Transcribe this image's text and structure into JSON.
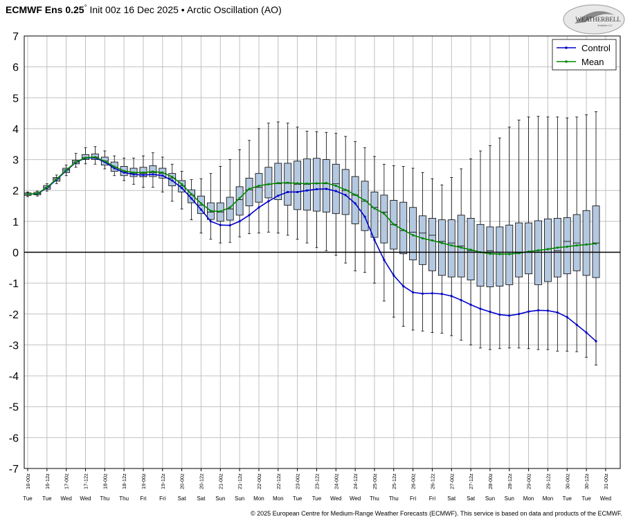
{
  "header": {
    "model": "ECMWF Ens 0.25",
    "degree": "°",
    "init": "Init 00z 16 Dec 2025",
    "separator": "•",
    "index_name": "Arctic Oscillation (AO)"
  },
  "logo": {
    "text": "WEATHERBELL",
    "sub": "Analytics LLC"
  },
  "footer": {
    "copyright": "© 2025 European Centre for Medium-Range Weather Forecasts (ECMWF). This service is based on data and products of the ECMWF."
  },
  "colors": {
    "control": "#0000cc",
    "mean": "#008800",
    "box_fill": "#b4c8e0",
    "grid": "#c0c0c0",
    "zero_line": "#000000"
  },
  "chart_data": {
    "type": "box_and_line",
    "title": "Arctic Oscillation (AO)",
    "ylim": [
      -7,
      7
    ],
    "yticks": [
      7,
      6,
      5,
      4,
      3,
      2,
      1,
      0,
      -1,
      -2,
      -3,
      -4,
      -5,
      -6,
      -7
    ],
    "grid": true,
    "legend_position": "top-right",
    "legend": [
      "Control",
      "Mean"
    ],
    "x_dates": [
      "16-00z",
      "16-12z",
      "17-00z",
      "17-12z",
      "18-00z",
      "18-12z",
      "19-00z",
      "19-12z",
      "20-00z",
      "20-12z",
      "21-00z",
      "21-12z",
      "22-00z",
      "22-12z",
      "23-00z",
      "23-12z",
      "24-00z",
      "24-12z",
      "25-00z",
      "25-12z",
      "26-00z",
      "26-12z",
      "27-00z",
      "27-12z",
      "28-00z",
      "28-12z",
      "29-00z",
      "29-12z",
      "30-00z",
      "30-12z",
      "31-00z"
    ],
    "x_days": [
      "Tue",
      "Tue",
      "Wed",
      "Wed",
      "Thu",
      "Thu",
      "Fri",
      "Fri",
      "Sat",
      "Sat",
      "Sun",
      "Sun",
      "Mon",
      "Mon",
      "Tue",
      "Tue",
      "Wed",
      "Wed",
      "Thu",
      "Thu",
      "Fri",
      "Fri",
      "Sat",
      "Sat",
      "Sun",
      "Sun",
      "Mon",
      "Mon",
      "Tue",
      "Tue",
      "Wed"
    ],
    "steps_per_label": 2,
    "series": [
      {
        "name": "Control",
        "values": [
          1.88,
          1.89,
          2.08,
          2.35,
          2.64,
          2.91,
          3.05,
          3.06,
          2.92,
          2.72,
          2.58,
          2.52,
          2.5,
          2.52,
          2.48,
          2.32,
          2.08,
          1.74,
          1.38,
          1.0,
          0.88,
          0.87,
          1.0,
          1.2,
          1.45,
          1.65,
          1.83,
          1.95,
          1.95,
          2.0,
          2.04,
          2.05,
          1.98,
          1.85,
          1.58,
          1.15,
          0.4,
          -0.25,
          -0.75,
          -1.1,
          -1.3,
          -1.34,
          -1.33,
          -1.35,
          -1.42,
          -1.55,
          -1.7,
          -1.83,
          -1.93,
          -2.02,
          -2.05,
          -2.0,
          -1.92,
          -1.88,
          -1.89,
          -1.95,
          -2.1,
          -2.35,
          -2.6,
          -2.88
        ]
      },
      {
        "name": "Mean",
        "values": [
          1.88,
          1.9,
          2.1,
          2.37,
          2.66,
          2.92,
          3.06,
          3.08,
          2.95,
          2.77,
          2.63,
          2.58,
          2.58,
          2.61,
          2.58,
          2.44,
          2.2,
          1.88,
          1.58,
          1.34,
          1.32,
          1.45,
          1.75,
          2.05,
          2.15,
          2.2,
          2.24,
          2.25,
          2.23,
          2.22,
          2.23,
          2.24,
          2.15,
          2.02,
          1.86,
          1.68,
          1.42,
          1.25,
          0.9,
          0.72,
          0.55,
          0.45,
          0.38,
          0.3,
          0.22,
          0.15,
          0.08,
          0.0,
          -0.05,
          -0.06,
          -0.06,
          -0.03,
          0.02,
          0.06,
          0.1,
          0.15,
          0.18,
          0.22,
          0.25,
          0.28
        ]
      }
    ],
    "boxes": {
      "q1": [
        1.84,
        1.86,
        2.04,
        2.3,
        2.58,
        2.86,
        3.0,
        3.0,
        2.82,
        2.62,
        2.48,
        2.45,
        2.44,
        2.45,
        2.4,
        2.15,
        1.95,
        1.6,
        1.25,
        1.06,
        1.0,
        1.04,
        1.2,
        1.5,
        1.62,
        1.76,
        1.7,
        1.52,
        1.38,
        1.36,
        1.33,
        1.3,
        1.25,
        1.22,
        0.92,
        0.7,
        0.48,
        0.3,
        0.1,
        -0.05,
        -0.25,
        -0.4,
        -0.6,
        -0.75,
        -0.8,
        -0.8,
        -0.9,
        -1.1,
        -1.12,
        -1.1,
        -1.05,
        -0.8,
        -0.7,
        -1.05,
        -0.95,
        -0.8,
        -0.7,
        -0.6,
        -0.75,
        -0.82
      ],
      "median": [
        1.88,
        1.9,
        2.1,
        2.37,
        2.66,
        2.92,
        3.06,
        3.08,
        2.95,
        2.75,
        2.6,
        2.56,
        2.55,
        2.58,
        2.55,
        2.4,
        2.15,
        1.85,
        1.52,
        1.3,
        1.3,
        1.4,
        1.7,
        2.02,
        2.1,
        2.2,
        2.22,
        2.23,
        2.2,
        2.2,
        2.22,
        2.22,
        2.22,
        2.0,
        1.85,
        1.65,
        1.45,
        1.3,
        0.9,
        0.7,
        0.65,
        0.62,
        0.55,
        0.35,
        0.3,
        0.2,
        0.05,
        0.0,
        0.05,
        0.0,
        0.0,
        0.0,
        0.0,
        0.0,
        0.0,
        0.05,
        0.35,
        0.3,
        0.25,
        0.3
      ],
      "q3": [
        1.92,
        1.94,
        2.16,
        2.42,
        2.72,
        2.98,
        3.16,
        3.18,
        3.08,
        2.92,
        2.78,
        2.72,
        2.75,
        2.8,
        2.72,
        2.55,
        2.32,
        2.02,
        1.82,
        1.6,
        1.6,
        1.78,
        2.12,
        2.4,
        2.55,
        2.75,
        2.88,
        2.88,
        2.95,
        3.02,
        3.04,
        3.0,
        2.85,
        2.68,
        2.45,
        2.3,
        1.95,
        1.85,
        1.68,
        1.62,
        1.45,
        1.18,
        1.1,
        1.05,
        1.05,
        1.2,
        1.1,
        0.9,
        0.82,
        0.82,
        0.88,
        0.95,
        0.95,
        1.02,
        1.08,
        1.1,
        1.12,
        1.22,
        1.35,
        1.5
      ],
      "whisker_low": [
        1.8,
        1.82,
        1.98,
        2.22,
        2.48,
        2.75,
        2.86,
        2.85,
        2.7,
        2.48,
        2.32,
        2.2,
        2.1,
        2.1,
        1.95,
        1.65,
        1.4,
        1.05,
        0.62,
        0.42,
        0.3,
        0.32,
        0.5,
        0.6,
        0.62,
        0.65,
        0.62,
        0.55,
        0.42,
        0.3,
        0.15,
        0.05,
        -0.1,
        -0.35,
        -0.6,
        -0.65,
        -1.0,
        -1.58,
        -2.1,
        -2.4,
        -2.52,
        -2.55,
        -2.6,
        -2.62,
        -2.7,
        -2.85,
        -3.0,
        -3.1,
        -3.15,
        -3.12,
        -3.1,
        -3.1,
        -3.12,
        -3.15,
        -3.15,
        -3.2,
        -3.2,
        -3.22,
        -3.4,
        -3.65
      ],
      "whisker_high": [
        1.95,
        1.98,
        2.22,
        2.5,
        2.82,
        3.2,
        3.38,
        3.42,
        3.28,
        3.12,
        3.05,
        3.05,
        3.12,
        3.22,
        3.08,
        2.85,
        2.62,
        2.35,
        2.38,
        2.55,
        2.78,
        3.0,
        3.32,
        3.62,
        4.0,
        4.18,
        4.22,
        4.18,
        4.05,
        3.92,
        3.9,
        3.88,
        3.85,
        3.75,
        3.58,
        3.38,
        3.1,
        2.85,
        2.8,
        2.78,
        2.72,
        2.58,
        2.38,
        2.18,
        2.42,
        2.7,
        3.02,
        3.28,
        3.45,
        3.7,
        4.05,
        4.28,
        4.38,
        4.4,
        4.38,
        4.38,
        4.35,
        4.38,
        4.45,
        4.55
      ]
    }
  }
}
